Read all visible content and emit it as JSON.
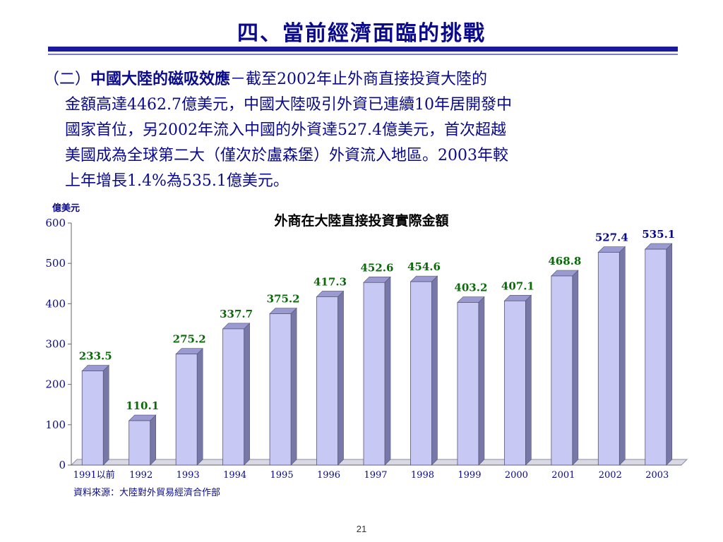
{
  "slide": {
    "title": "四、當前經濟面臨的挑戰",
    "para_lead": "（二）",
    "para_heading": "中國大陸的磁吸效應",
    "para_rest": "－截至2002年止外商直接投資大陸的",
    "lines": [
      "金額高達4462.7億美元，中國大陸吸引外資已連續10年居開發中",
      "國家首位，另2002年流入中國的外資達527.4億美元，首次超越",
      "美國成為全球第二大（僅次於盧森堡）外資流入地區。2003年較",
      "上年增長1.4%為535.1億美元。"
    ],
    "source": "資料來源：大陸對外貿易經濟合作部",
    "page_number": "21"
  },
  "chart_data": {
    "type": "bar",
    "title": "外商在大陸直接投資實際金額",
    "ylabel": "億美元",
    "xlabel": "",
    "ylim": [
      0,
      600
    ],
    "yticks": [
      "0",
      "100",
      "200",
      "300",
      "400",
      "500",
      "600"
    ],
    "categories": [
      "1991以前",
      "1992",
      "1993",
      "1994",
      "1995",
      "1996",
      "1997",
      "1998",
      "1999",
      "2000",
      "2001",
      "2002",
      "2003"
    ],
    "values": [
      233.5,
      110.1,
      275.2,
      337.7,
      375.2,
      417.3,
      452.6,
      454.6,
      403.2,
      407.1,
      468.8,
      527.4,
      535.1
    ],
    "value_labels": [
      "233.5",
      "110.1",
      "275.2",
      "337.7",
      "375.2",
      "417.3",
      "452.6",
      "454.6",
      "403.2",
      "407.1",
      "468.8",
      "527.4",
      "535.1"
    ],
    "colors": {
      "bar_front": "#c8c8f4",
      "bar_side": "#7878a8",
      "bar_top": "#9a9ad0",
      "label_dark": "#0a0a8a",
      "label_green": "#0a6a0a"
    }
  }
}
